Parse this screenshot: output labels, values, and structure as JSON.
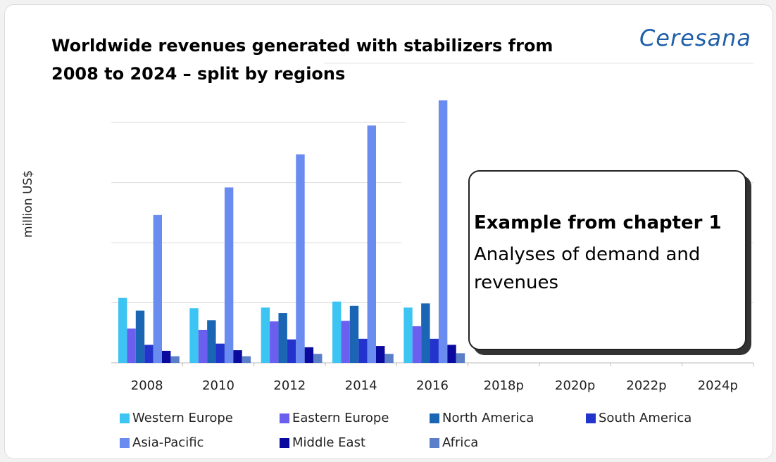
{
  "chart_data": {
    "type": "bar",
    "title": "Worldwide revenues generated with stabilizers from 2008 to 2024 – split by regions",
    "logo": "Ceresana",
    "y_label": "million US$",
    "annotation": {
      "heading": "Example from chapter 1",
      "text": "Analyses of demand and revenues"
    },
    "categories": [
      "2008",
      "2010",
      "2012",
      "2014",
      "2016",
      "2018p",
      "2020p",
      "2022p",
      "2024p"
    ],
    "series": [
      {
        "name": "Western Europe",
        "color": "#3cc4f2",
        "values": [
          1.08,
          0.91,
          0.92,
          1.02,
          0.92,
          null,
          null,
          null,
          null
        ]
      },
      {
        "name": "Eastern Europe",
        "color": "#6b5ff0",
        "values": [
          0.57,
          0.55,
          0.69,
          0.7,
          0.61,
          null,
          null,
          null,
          null
        ]
      },
      {
        "name": "North America",
        "color": "#1a66b4",
        "values": [
          0.87,
          0.71,
          0.83,
          0.95,
          0.99,
          null,
          null,
          null,
          null
        ]
      },
      {
        "name": "South America",
        "color": "#2234cc",
        "values": [
          0.3,
          0.32,
          0.39,
          0.4,
          0.4,
          null,
          null,
          null,
          null
        ]
      },
      {
        "name": "Asia-Pacific",
        "color": "#6a8cf0",
        "values": [
          2.46,
          2.92,
          3.47,
          3.95,
          4.37,
          null,
          null,
          null,
          null
        ]
      },
      {
        "name": "Middle East",
        "color": "#0a0a9e",
        "values": [
          0.2,
          0.21,
          0.26,
          0.28,
          0.3,
          null,
          null,
          null,
          null
        ]
      },
      {
        "name": "Africa",
        "color": "#5a7ec8",
        "values": [
          0.11,
          0.11,
          0.15,
          0.15,
          0.16,
          null,
          null,
          null,
          null
        ]
      }
    ],
    "ylim": [
      0,
      4.4
    ],
    "yticks": [
      0,
      1,
      2,
      3,
      4
    ],
    "grid": true
  }
}
